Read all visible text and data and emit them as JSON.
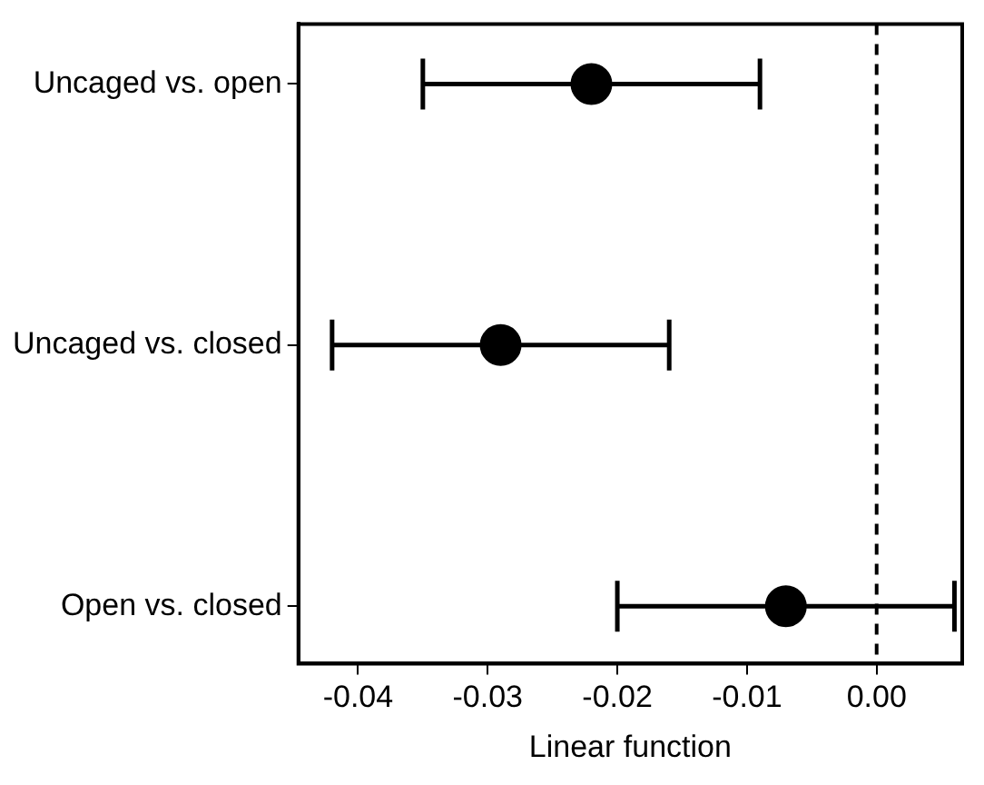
{
  "chart_data": {
    "type": "scatter",
    "orientation": "horizontal",
    "xlabel": "Linear function",
    "categories": [
      "Uncaged vs. open",
      "Uncaged vs. closed",
      "Open vs. closed"
    ],
    "values": [
      -0.022,
      -0.029,
      -0.007
    ],
    "errors": [
      [
        -0.035,
        -0.009
      ],
      [
        -0.042,
        -0.016
      ],
      [
        -0.02,
        0.006
      ]
    ],
    "color": "#000000",
    "marker": "circle",
    "xlim": [
      -0.0446,
      0.0066
    ],
    "xticks": [
      {
        "value": -0.04,
        "label": "-0.04"
      },
      {
        "value": -0.03,
        "label": "-0.03"
      },
      {
        "value": -0.02,
        "label": "-0.02"
      },
      {
        "value": -0.01,
        "label": "-0.01"
      },
      {
        "value": 0,
        "label": "0.00"
      }
    ],
    "ref_lines": [
      {
        "axis": "x",
        "value": 0,
        "line_style": "dashed",
        "color": "#000000"
      }
    ],
    "grid": false,
    "legend": false
  }
}
